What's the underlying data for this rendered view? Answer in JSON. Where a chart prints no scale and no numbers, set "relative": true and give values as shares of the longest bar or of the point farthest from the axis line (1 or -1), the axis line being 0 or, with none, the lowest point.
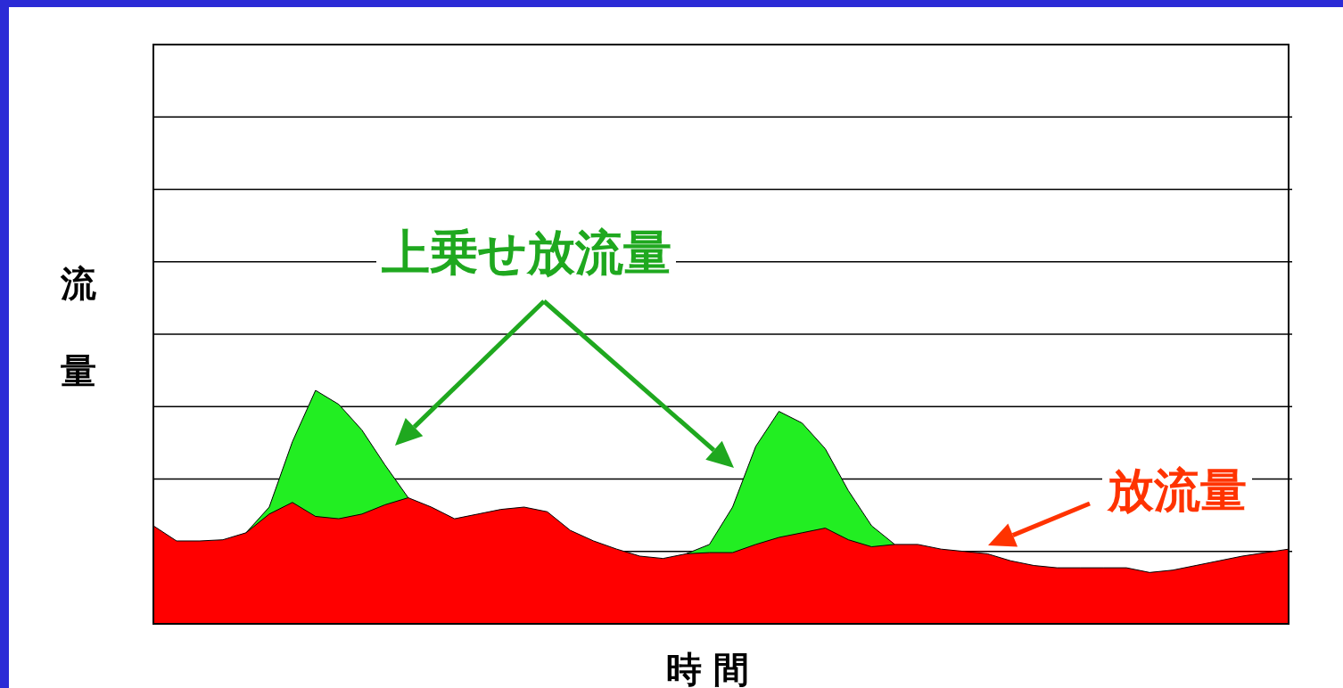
{
  "chart_data": {
    "type": "area",
    "relative": true,
    "grid": true,
    "xlabel": "時 間",
    "ylabel": "流量",
    "categories": [
      null,
      null,
      null,
      null,
      null,
      null,
      null,
      null,
      null,
      null,
      null,
      null,
      null,
      null,
      null,
      null,
      null,
      null,
      null,
      null,
      null,
      null,
      null,
      null,
      null,
      null,
      null,
      null,
      null,
      null,
      null,
      null,
      null,
      null,
      null,
      null,
      null,
      null,
      null,
      null,
      null,
      null,
      null,
      null,
      null,
      null,
      null,
      null,
      null,
      null
    ],
    "series": [
      {
        "color": "#22ee22",
        "values": [
          null,
          null,
          null,
          null,
          0.39,
          0.5,
          0.78,
          1.0,
          0.94,
          0.83,
          0.68,
          0.54,
          null,
          null,
          null,
          null,
          null,
          null,
          null,
          null,
          null,
          null,
          null,
          0.3,
          0.34,
          0.5,
          0.76,
          0.91,
          0.86,
          0.75,
          0.57,
          0.42,
          0.34,
          null,
          null,
          null,
          null,
          null,
          null,
          null,
          null,
          null,
          null,
          null,
          null,
          null,
          null,
          null,
          null,
          null
        ]
      },
      {
        "color": "#ff0000",
        "values": [
          0.42,
          0.355,
          0.355,
          0.36,
          0.39,
          0.47,
          0.52,
          0.46,
          0.45,
          0.47,
          0.51,
          0.54,
          0.5,
          0.45,
          0.47,
          0.49,
          0.5,
          0.48,
          0.4,
          0.355,
          0.32,
          0.29,
          0.28,
          0.3,
          0.305,
          0.305,
          0.34,
          0.37,
          0.39,
          0.41,
          0.36,
          0.33,
          0.34,
          0.34,
          0.32,
          0.31,
          0.3,
          0.27,
          0.25,
          0.24,
          0.24,
          0.24,
          0.24,
          0.22,
          0.23,
          0.25,
          0.27,
          0.29,
          0.305,
          0.32
        ]
      }
    ],
    "annotations": [
      "上乗せ放流量",
      "放流量"
    ]
  }
}
